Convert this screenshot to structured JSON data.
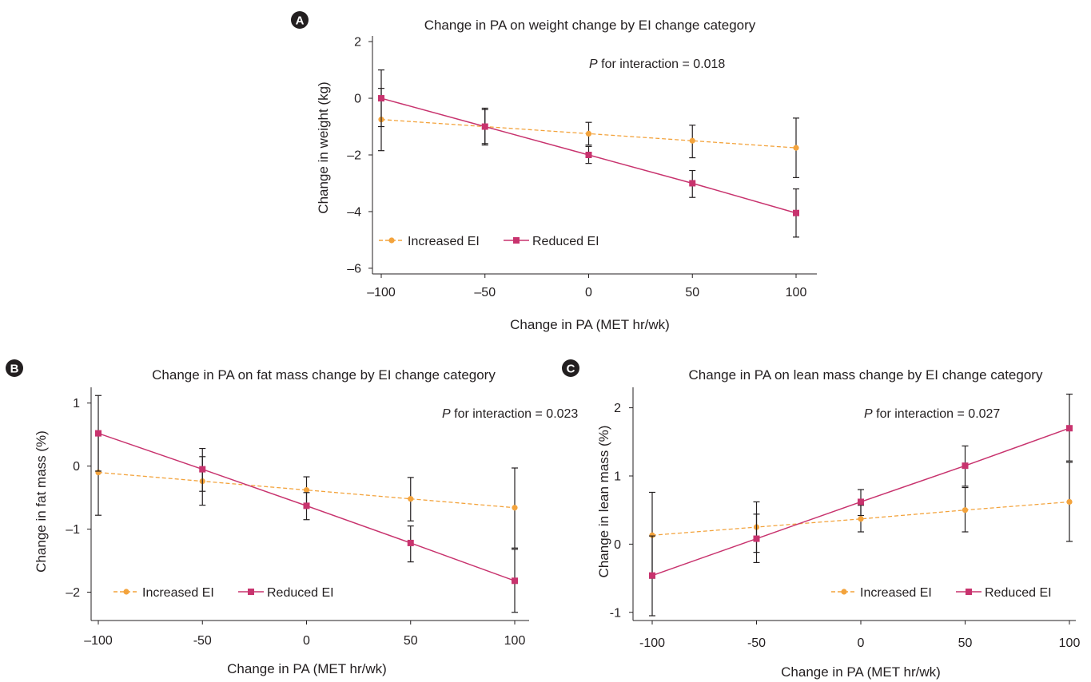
{
  "colors": {
    "increased": "#f3a33c",
    "reduced": "#c8336e",
    "axis": "#231f20",
    "errbar": "#231f20"
  },
  "chart_data": [
    {
      "id": "A",
      "type": "line",
      "badge": "A",
      "title": "Change in PA on weight change by EI change category",
      "xlabel": "Change in PA (MET hr/wk)",
      "ylabel": "Change in weight (kg)",
      "annotation": {
        "italic": "P",
        "rest": " for interaction = 0.018"
      },
      "x": [
        -100,
        -50,
        0,
        50,
        100
      ],
      "x_ticks": [
        "–100",
        "–50",
        "0",
        "50",
        "100"
      ],
      "y_ticks": [
        2,
        0,
        -2,
        -4,
        -6
      ],
      "y_tick_labels": [
        "2",
        "0",
        "–2",
        "–4",
        "–6"
      ],
      "xlim": [
        -100,
        100
      ],
      "ylim": [
        -6.2,
        2.2
      ],
      "legend_position": "bottom-left",
      "series": [
        {
          "name": "Increased EI",
          "style": "dashed",
          "marker": "circle",
          "values": [
            -0.75,
            -1.0,
            -1.25,
            -1.5,
            -1.75
          ],
          "err_low": [
            -1.85,
            -1.65,
            -1.65,
            -2.1,
            -2.8
          ],
          "err_high": [
            0.35,
            -0.35,
            -0.85,
            -0.95,
            -0.7
          ]
        },
        {
          "name": "Reduced EI",
          "style": "solid",
          "marker": "square",
          "values": [
            0.0,
            -1.0,
            -2.0,
            -3.0,
            -4.05
          ],
          "err_low": [
            -1.0,
            -1.6,
            -2.3,
            -3.5,
            -4.9
          ],
          "err_high": [
            1.0,
            -0.4,
            -1.7,
            -2.55,
            -3.2
          ]
        }
      ]
    },
    {
      "id": "B",
      "type": "line",
      "badge": "B",
      "title": "Change in PA on fat mass change by EI change category",
      "xlabel": "Change in PA (MET hr/wk)",
      "ylabel": "Change in fat mass (%)",
      "annotation": {
        "italic": "P",
        "rest": " for interaction = 0.023"
      },
      "x": [
        -100,
        -50,
        0,
        50,
        100
      ],
      "x_ticks": [
        "–100",
        "-50",
        "0",
        "50",
        "100"
      ],
      "y_ticks": [
        1,
        0,
        -1,
        -2
      ],
      "y_tick_labels": [
        "1",
        "0",
        "–1",
        "–2"
      ],
      "xlim": [
        -100,
        100
      ],
      "ylim": [
        -2.45,
        1.25
      ],
      "legend_position": "bottom-left",
      "series": [
        {
          "name": "Increased EI",
          "style": "dashed",
          "marker": "circle",
          "values": [
            -0.1,
            -0.24,
            -0.38,
            -0.52,
            -0.66
          ],
          "err_low": [
            -0.78,
            -0.62,
            -0.62,
            -0.87,
            -1.3
          ],
          "err_high": [
            0.55,
            0.15,
            -0.17,
            -0.18,
            -0.03
          ]
        },
        {
          "name": "Reduced EI",
          "style": "solid",
          "marker": "square",
          "values": [
            0.52,
            -0.05,
            -0.63,
            -1.22,
            -1.82
          ],
          "err_low": [
            -0.08,
            -0.4,
            -0.85,
            -1.52,
            -2.32
          ],
          "err_high": [
            1.12,
            0.28,
            -0.42,
            -0.95,
            -1.32
          ]
        }
      ]
    },
    {
      "id": "C",
      "type": "line",
      "badge": "C",
      "title": "Change in PA on lean mass change by EI change category",
      "xlabel": "Change in PA (MET hr/wk)",
      "ylabel": "Change in lean mass (%)",
      "annotation": {
        "italic": "P",
        "rest": " for interaction = 0.027"
      },
      "x": [
        -100,
        -50,
        0,
        50,
        100
      ],
      "x_ticks": [
        "-100",
        "-50",
        "0",
        "50",
        "100"
      ],
      "y_ticks": [
        2,
        1,
        0,
        -1
      ],
      "y_tick_labels": [
        "2",
        "1",
        "0",
        "-1"
      ],
      "xlim": [
        -100,
        100
      ],
      "ylim": [
        -1.12,
        2.3
      ],
      "legend_position": "bottom-right",
      "series": [
        {
          "name": "Increased EI",
          "style": "dashed",
          "marker": "circle",
          "values": [
            0.13,
            0.25,
            0.37,
            0.5,
            0.62
          ],
          "err_low": [
            -0.5,
            -0.12,
            0.18,
            0.18,
            0.04
          ],
          "err_high": [
            0.76,
            0.62,
            0.57,
            0.83,
            1.2
          ]
        },
        {
          "name": "Reduced EI",
          "style": "solid",
          "marker": "square",
          "values": [
            -0.46,
            0.08,
            0.62,
            1.15,
            1.7
          ],
          "err_low": [
            -1.05,
            -0.27,
            0.42,
            0.85,
            1.22
          ],
          "err_high": [
            0.12,
            0.44,
            0.8,
            1.44,
            2.2
          ]
        }
      ]
    }
  ]
}
